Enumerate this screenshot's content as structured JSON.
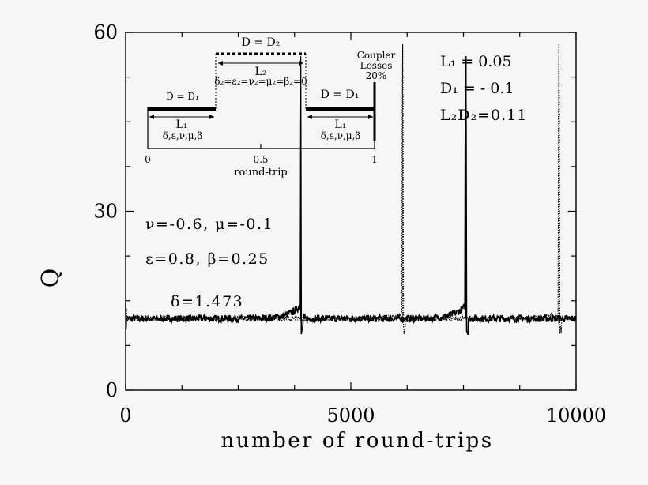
{
  "chart_data": {
    "type": "line",
    "xlabel": "number of round-trips",
    "ylabel": "Q",
    "xlim": [
      0,
      10000
    ],
    "ylim": [
      0,
      60
    ],
    "x_ticks": [
      0,
      5000,
      10000
    ],
    "y_ticks": [
      0,
      30,
      60
    ],
    "grid": false,
    "baseline": 12,
    "series": [
      {
        "style": "solid",
        "peaks": [
          {
            "x": 3880,
            "y": 56
          },
          {
            "x": 7550,
            "y": 56
          }
        ]
      },
      {
        "style": "dotted",
        "peaks": [
          {
            "x": 6150,
            "y": 58
          },
          {
            "x": 9620,
            "y": 58
          }
        ]
      }
    ],
    "annotations": [
      "ν=-0.6, μ=-0.1",
      "ε=0.8, β=0.25",
      "δ=1.473"
    ],
    "params": {
      "L1": "L₁ = 0.05",
      "D1": "D₁ = - 0.1",
      "L2D2": "L₂D₂=0.11"
    }
  },
  "inset": {
    "xlabel": "round-trip",
    "x_ticks": [
      "0",
      "0.5",
      "1"
    ],
    "d2_label": "D = D₂",
    "d1_left": "D = D₁",
    "d1_right": "D = D₁",
    "l2": "L₂",
    "l2_params": "δ₂=ε₂=ν₂=μ₂=β₂=0",
    "l1_left": "L₁",
    "l1_right": "L₁",
    "l1_params_left": "δ,ε,ν,μ,β",
    "l1_params_right": "δ,ε,ν,μ,β",
    "coupler_1": "Coupler",
    "coupler_2": "Losses",
    "coupler_3": "20%"
  }
}
